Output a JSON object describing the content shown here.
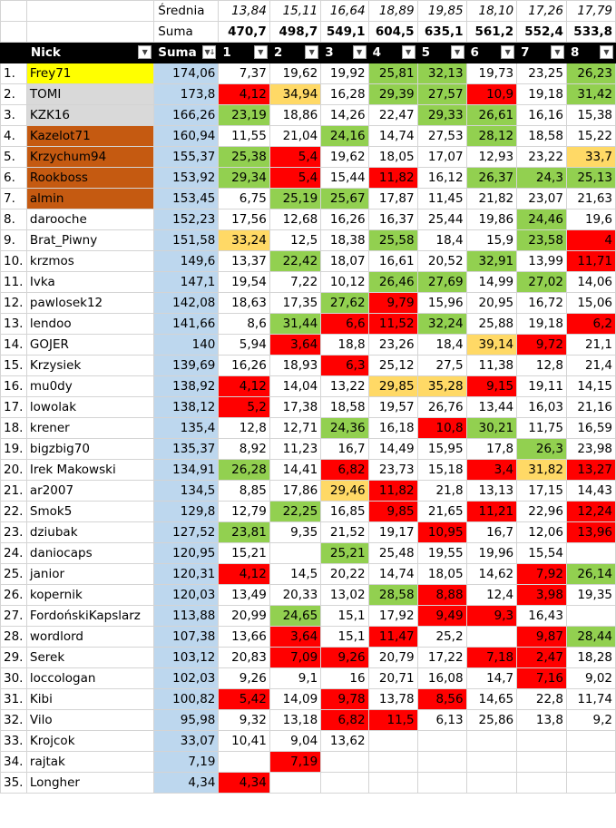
{
  "colors": {
    "green": "#92d050",
    "red": "#ff0000",
    "orange": "#ffd966",
    "gold_1st": "#ffff00",
    "silver_2nd_3rd": "#d9d9d9",
    "bronze_4th_7th": "#c55a11",
    "sum_column": "#bdd7ee",
    "header": "#000000"
  },
  "stats": {
    "avg_label": "Średnia",
    "avg": [
      "13,84",
      "15,11",
      "16,64",
      "18,89",
      "19,85",
      "18,10",
      "17,26",
      "17,79"
    ],
    "sum_label": "Suma",
    "sum": [
      "470,7",
      "498,7",
      "549,1",
      "604,5",
      "635,1",
      "561,2",
      "552,4",
      "533,8"
    ]
  },
  "header": {
    "nick": "Nick",
    "suma": "Suma",
    "rounds": [
      "1",
      "2",
      "3",
      "4",
      "5",
      "6",
      "7",
      "8"
    ],
    "filter_icon": "dropdown-arrow-icon",
    "sort_icon": "sort-descending-icon"
  },
  "rows": [
    {
      "rank": "1.",
      "nick": "Frey71",
      "suma": "174,06",
      "nc": "y",
      "v": [
        "7,37",
        "19,62",
        "19,92",
        "25,81",
        "32,13",
        "19,73",
        "23,25",
        "26,23"
      ],
      "c": [
        "",
        "",
        "",
        "g",
        "g",
        "",
        "",
        "g"
      ]
    },
    {
      "rank": "2.",
      "nick": "TOMI",
      "suma": "173,8",
      "nc": "s",
      "v": [
        "4,12",
        "34,94",
        "16,28",
        "29,39",
        "27,57",
        "10,9",
        "19,18",
        "31,42"
      ],
      "c": [
        "r",
        "o",
        "",
        "g",
        "g",
        "r",
        "",
        "g"
      ]
    },
    {
      "rank": "3.",
      "nick": "KZK16",
      "suma": "166,26",
      "nc": "s",
      "v": [
        "23,19",
        "18,86",
        "14,26",
        "22,47",
        "29,33",
        "26,61",
        "16,16",
        "15,38"
      ],
      "c": [
        "g",
        "",
        "",
        "",
        "g",
        "g",
        "",
        ""
      ]
    },
    {
      "rank": "4.",
      "nick": "Kazelot71",
      "suma": "160,94",
      "nc": "b",
      "v": [
        "11,55",
        "21,04",
        "24,16",
        "14,74",
        "27,53",
        "28,12",
        "18,58",
        "15,22"
      ],
      "c": [
        "",
        "",
        "g",
        "",
        "",
        "g",
        "",
        ""
      ]
    },
    {
      "rank": "5.",
      "nick": "Krzychum94",
      "suma": "155,37",
      "nc": "b",
      "v": [
        "25,38",
        "5,4",
        "19,62",
        "18,05",
        "17,07",
        "12,93",
        "23,22",
        "33,7"
      ],
      "c": [
        "g",
        "r",
        "",
        "",
        "",
        "",
        "",
        "o"
      ]
    },
    {
      "rank": "6.",
      "nick": "Rookboss",
      "suma": "153,92",
      "nc": "b",
      "v": [
        "29,34",
        "5,4",
        "15,44",
        "11,82",
        "16,12",
        "26,37",
        "24,3",
        "25,13"
      ],
      "c": [
        "g",
        "r",
        "",
        "r",
        "",
        "g",
        "g",
        "g"
      ]
    },
    {
      "rank": "7.",
      "nick": "almin",
      "suma": "153,45",
      "nc": "b",
      "v": [
        "6,75",
        "25,19",
        "25,67",
        "17,87",
        "11,45",
        "21,82",
        "23,07",
        "21,63"
      ],
      "c": [
        "",
        "g",
        "g",
        "",
        "",
        "",
        "",
        ""
      ]
    },
    {
      "rank": "8.",
      "nick": "darooche",
      "suma": "152,23",
      "nc": "",
      "v": [
        "17,56",
        "12,68",
        "16,26",
        "16,37",
        "25,44",
        "19,86",
        "24,46",
        "19,6"
      ],
      "c": [
        "",
        "",
        "",
        "",
        "",
        "",
        "g",
        ""
      ]
    },
    {
      "rank": "9.",
      "nick": "Brat_Piwny",
      "suma": "151,58",
      "nc": "",
      "v": [
        "33,24",
        "12,5",
        "18,38",
        "25,58",
        "18,4",
        "15,9",
        "23,58",
        "4"
      ],
      "c": [
        "o",
        "",
        "",
        "g",
        "",
        "",
        "g",
        "r"
      ]
    },
    {
      "rank": "10.",
      "nick": "krzmos",
      "suma": "149,6",
      "nc": "",
      "v": [
        "13,37",
        "22,42",
        "18,07",
        "16,61",
        "20,52",
        "32,91",
        "13,99",
        "11,71"
      ],
      "c": [
        "",
        "g",
        "",
        "",
        "",
        "g",
        "",
        "r"
      ]
    },
    {
      "rank": "11.",
      "nick": "Ivka",
      "suma": "147,1",
      "nc": "",
      "v": [
        "19,54",
        "7,22",
        "10,12",
        "26,46",
        "27,69",
        "14,99",
        "27,02",
        "14,06"
      ],
      "c": [
        "",
        "",
        "",
        "g",
        "g",
        "",
        "g",
        ""
      ]
    },
    {
      "rank": "12.",
      "nick": "pawlosek12",
      "suma": "142,08",
      "nc": "",
      "v": [
        "18,63",
        "17,35",
        "27,62",
        "9,79",
        "15,96",
        "20,95",
        "16,72",
        "15,06"
      ],
      "c": [
        "",
        "",
        "g",
        "r",
        "",
        "",
        "",
        ""
      ]
    },
    {
      "rank": "13.",
      "nick": "lendoo",
      "suma": "141,66",
      "nc": "",
      "v": [
        "8,6",
        "31,44",
        "6,6",
        "11,52",
        "32,24",
        "25,88",
        "19,18",
        "6,2"
      ],
      "c": [
        "",
        "g",
        "r",
        "r",
        "g",
        "",
        "",
        "r"
      ]
    },
    {
      "rank": "14.",
      "nick": "GOJER",
      "suma": "140",
      "nc": "",
      "v": [
        "5,94",
        "3,64",
        "18,8",
        "23,26",
        "18,4",
        "39,14",
        "9,72",
        "21,1"
      ],
      "c": [
        "",
        "r",
        "",
        "",
        "",
        "o",
        "r",
        ""
      ]
    },
    {
      "rank": "15.",
      "nick": "Krzysiek",
      "suma": "139,69",
      "nc": "",
      "v": [
        "16,26",
        "18,93",
        "6,3",
        "25,12",
        "27,5",
        "11,38",
        "12,8",
        "21,4"
      ],
      "c": [
        "",
        "",
        "r",
        "",
        "",
        "",
        "",
        ""
      ]
    },
    {
      "rank": "16.",
      "nick": "mu0dy",
      "suma": "138,92",
      "nc": "",
      "v": [
        "4,12",
        "14,04",
        "13,22",
        "29,85",
        "35,28",
        "9,15",
        "19,11",
        "14,15"
      ],
      "c": [
        "r",
        "",
        "",
        "o",
        "o",
        "r",
        "",
        ""
      ]
    },
    {
      "rank": "17.",
      "nick": "lowolak",
      "suma": "138,12",
      "nc": "",
      "v": [
        "5,2",
        "17,38",
        "18,58",
        "19,57",
        "26,76",
        "13,44",
        "16,03",
        "21,16"
      ],
      "c": [
        "r",
        "",
        "",
        "",
        "",
        "",
        "",
        ""
      ]
    },
    {
      "rank": "18.",
      "nick": "krener",
      "suma": "135,4",
      "nc": "",
      "v": [
        "12,8",
        "12,71",
        "24,36",
        "16,18",
        "10,8",
        "30,21",
        "11,75",
        "16,59"
      ],
      "c": [
        "",
        "",
        "g",
        "",
        "r",
        "g",
        "",
        ""
      ]
    },
    {
      "rank": "19.",
      "nick": "bigzbig70",
      "suma": "135,37",
      "nc": "",
      "v": [
        "8,92",
        "11,23",
        "16,7",
        "14,49",
        "15,95",
        "17,8",
        "26,3",
        "23,98"
      ],
      "c": [
        "",
        "",
        "",
        "",
        "",
        "",
        "g",
        ""
      ]
    },
    {
      "rank": "20.",
      "nick": "Irek Makowski",
      "suma": "134,91",
      "nc": "",
      "v": [
        "26,28",
        "14,41",
        "6,82",
        "23,73",
        "15,18",
        "3,4",
        "31,82",
        "13,27"
      ],
      "c": [
        "g",
        "",
        "r",
        "",
        "",
        "r",
        "o",
        "r"
      ]
    },
    {
      "rank": "21.",
      "nick": "ar2007",
      "suma": "134,5",
      "nc": "",
      "v": [
        "8,85",
        "17,86",
        "29,46",
        "11,82",
        "21,8",
        "13,13",
        "17,15",
        "14,43"
      ],
      "c": [
        "",
        "",
        "o",
        "r",
        "",
        "",
        "",
        ""
      ]
    },
    {
      "rank": "22.",
      "nick": "Smok5",
      "suma": "129,8",
      "nc": "",
      "v": [
        "12,79",
        "22,25",
        "16,85",
        "9,85",
        "21,65",
        "11,21",
        "22,96",
        "12,24"
      ],
      "c": [
        "",
        "g",
        "",
        "r",
        "",
        "r",
        "",
        "r"
      ]
    },
    {
      "rank": "23.",
      "nick": "dziubak",
      "suma": "127,52",
      "nc": "",
      "v": [
        "23,81",
        "9,35",
        "21,52",
        "19,17",
        "10,95",
        "16,7",
        "12,06",
        "13,96"
      ],
      "c": [
        "g",
        "",
        "",
        "",
        "r",
        "",
        "",
        "r"
      ]
    },
    {
      "rank": "24.",
      "nick": "daniocaps",
      "suma": "120,95",
      "nc": "",
      "v": [
        "15,21",
        "",
        "25,21",
        "25,48",
        "19,55",
        "19,96",
        "15,54",
        ""
      ],
      "c": [
        "",
        "",
        "g",
        "",
        "",
        "",
        "",
        ""
      ]
    },
    {
      "rank": "25.",
      "nick": "janior",
      "suma": "120,31",
      "nc": "",
      "v": [
        "4,12",
        "14,5",
        "20,22",
        "14,74",
        "18,05",
        "14,62",
        "7,92",
        "26,14"
      ],
      "c": [
        "r",
        "",
        "",
        "",
        "",
        "",
        "r",
        "g"
      ]
    },
    {
      "rank": "26.",
      "nick": "kopernik",
      "suma": "120,03",
      "nc": "",
      "v": [
        "13,49",
        "20,33",
        "13,02",
        "28,58",
        "8,88",
        "12,4",
        "3,98",
        "19,35"
      ],
      "c": [
        "",
        "",
        "",
        "g",
        "r",
        "",
        "r",
        ""
      ]
    },
    {
      "rank": "27.",
      "nick": "FordońskiKapslarz",
      "suma": "113,88",
      "nc": "",
      "v": [
        "20,99",
        "24,65",
        "15,1",
        "17,92",
        "9,49",
        "9,3",
        "16,43",
        ""
      ],
      "c": [
        "",
        "g",
        "",
        "",
        "r",
        "r",
        "",
        ""
      ]
    },
    {
      "rank": "28.",
      "nick": "wordlord",
      "suma": "107,38",
      "nc": "",
      "v": [
        "13,66",
        "3,64",
        "15,1",
        "11,47",
        "25,2",
        "",
        "9,87",
        "28,44"
      ],
      "c": [
        "",
        "r",
        "",
        "r",
        "",
        "",
        "r",
        "g"
      ]
    },
    {
      "rank": "29.",
      "nick": "Serek",
      "suma": "103,12",
      "nc": "",
      "v": [
        "20,83",
        "7,09",
        "9,26",
        "20,79",
        "17,22",
        "7,18",
        "2,47",
        "18,28"
      ],
      "c": [
        "",
        "r",
        "r",
        "",
        "",
        "r",
        "r",
        ""
      ]
    },
    {
      "rank": "30.",
      "nick": "loccologan",
      "suma": "102,03",
      "nc": "",
      "v": [
        "9,26",
        "9,1",
        "16",
        "20,71",
        "16,08",
        "14,7",
        "7,16",
        "9,02"
      ],
      "c": [
        "",
        "",
        "",
        "",
        "",
        "",
        "r",
        ""
      ]
    },
    {
      "rank": "31.",
      "nick": "Kibi",
      "suma": "100,82",
      "nc": "",
      "v": [
        "5,42",
        "14,09",
        "9,78",
        "13,78",
        "8,56",
        "14,65",
        "22,8",
        "11,74"
      ],
      "c": [
        "r",
        "",
        "r",
        "",
        "r",
        "",
        "",
        ""
      ]
    },
    {
      "rank": "32.",
      "nick": "Vilo",
      "suma": "95,98",
      "nc": "",
      "v": [
        "9,32",
        "13,18",
        "6,82",
        "11,5",
        "6,13",
        "25,86",
        "13,8",
        "9,2"
      ],
      "c": [
        "",
        "",
        "r",
        "r",
        "",
        "",
        "",
        ""
      ]
    },
    {
      "rank": "33.",
      "nick": "Krojcok",
      "suma": "33,07",
      "nc": "",
      "v": [
        "10,41",
        "9,04",
        "13,62",
        "",
        "",
        "",
        "",
        ""
      ],
      "c": [
        "",
        "",
        "",
        "",
        "",
        "",
        "",
        ""
      ]
    },
    {
      "rank": "34.",
      "nick": "rajtak",
      "suma": "7,19",
      "nc": "",
      "v": [
        "",
        "7,19",
        "",
        "",
        "",
        "",
        "",
        ""
      ],
      "c": [
        "",
        "r",
        "",
        "",
        "",
        "",
        "",
        ""
      ]
    },
    {
      "rank": "35.",
      "nick": "Longher",
      "suma": "4,34",
      "nc": "",
      "v": [
        "4,34",
        "",
        "",
        "",
        "",
        "",
        "",
        ""
      ],
      "c": [
        "r",
        "",
        "",
        "",
        "",
        "",
        "",
        ""
      ]
    }
  ]
}
